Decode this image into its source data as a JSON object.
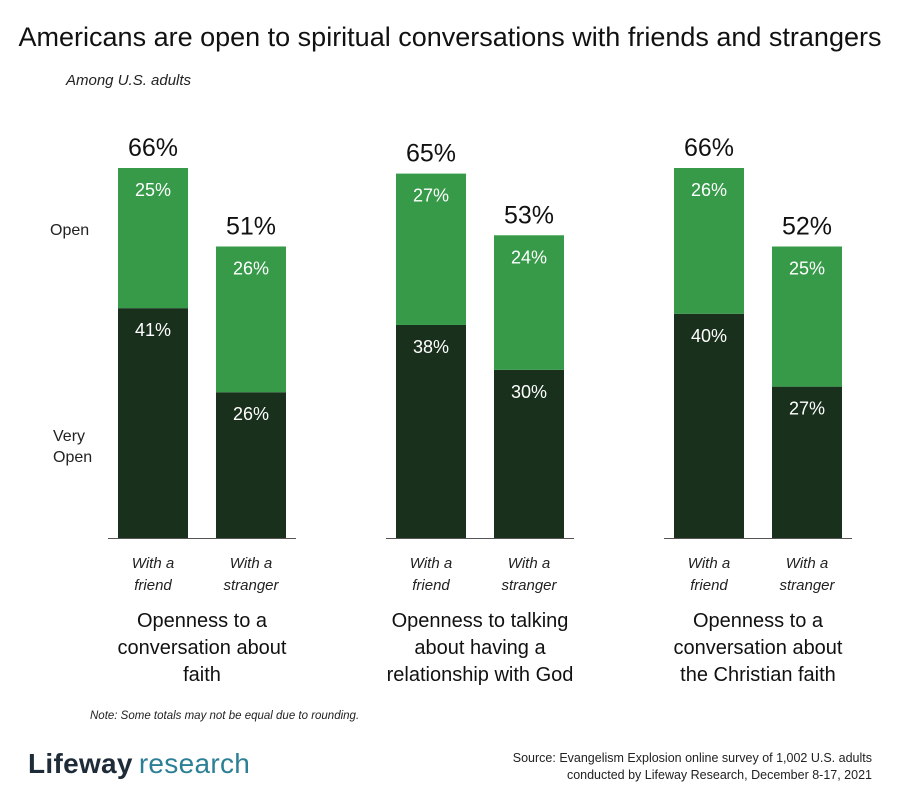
{
  "chart_data": {
    "type": "bar",
    "stacked": true,
    "title": "Americans are open to spiritual conversations with friends and strangers",
    "subtitle": "Among U.S. adults",
    "legend_labels": [
      {
        "name": "Open",
        "color": "#369a48"
      },
      {
        "name": "Very Open",
        "line1": "Very",
        "line2": "Open",
        "color": "#18301c"
      }
    ],
    "ylim": [
      0,
      72
    ],
    "groups": [
      {
        "title_lines": [
          "Openness to a",
          "conversation about",
          "faith"
        ],
        "bars": [
          {
            "label_lines": [
              "With a",
              "friend"
            ],
            "very_open": 41,
            "open": 25,
            "total": 66
          },
          {
            "label_lines": [
              "With a",
              "stranger"
            ],
            "very_open": 26,
            "open": 26,
            "total": 51
          }
        ]
      },
      {
        "title_lines": [
          "Openness to talking",
          "about having a",
          "relationship with God"
        ],
        "bars": [
          {
            "label_lines": [
              "With a",
              "friend"
            ],
            "very_open": 38,
            "open": 27,
            "total": 65
          },
          {
            "label_lines": [
              "With a",
              "stranger"
            ],
            "very_open": 30,
            "open": 24,
            "total": 53
          }
        ]
      },
      {
        "title_lines": [
          "Openness to a",
          "conversation about",
          "the Christian faith"
        ],
        "bars": [
          {
            "label_lines": [
              "With a",
              "friend"
            ],
            "very_open": 40,
            "open": 26,
            "total": 66
          },
          {
            "label_lines": [
              "With a",
              "stranger"
            ],
            "very_open": 27,
            "open": 25,
            "total": 52
          }
        ]
      }
    ]
  },
  "note": "Note: Some totals may not be equal due to rounding.",
  "logo": {
    "part1": "Lifeway",
    "part2": "research"
  },
  "source": {
    "line1": "Source: Evangelism Explosion online survey of 1,002 U.S. adults",
    "line2": "conducted by Lifeway Research, December 8-17, 2021"
  },
  "colors": {
    "open": "#369a48",
    "very_open": "#18301c",
    "bar_text": "#ffffff",
    "axis": "#555555"
  }
}
